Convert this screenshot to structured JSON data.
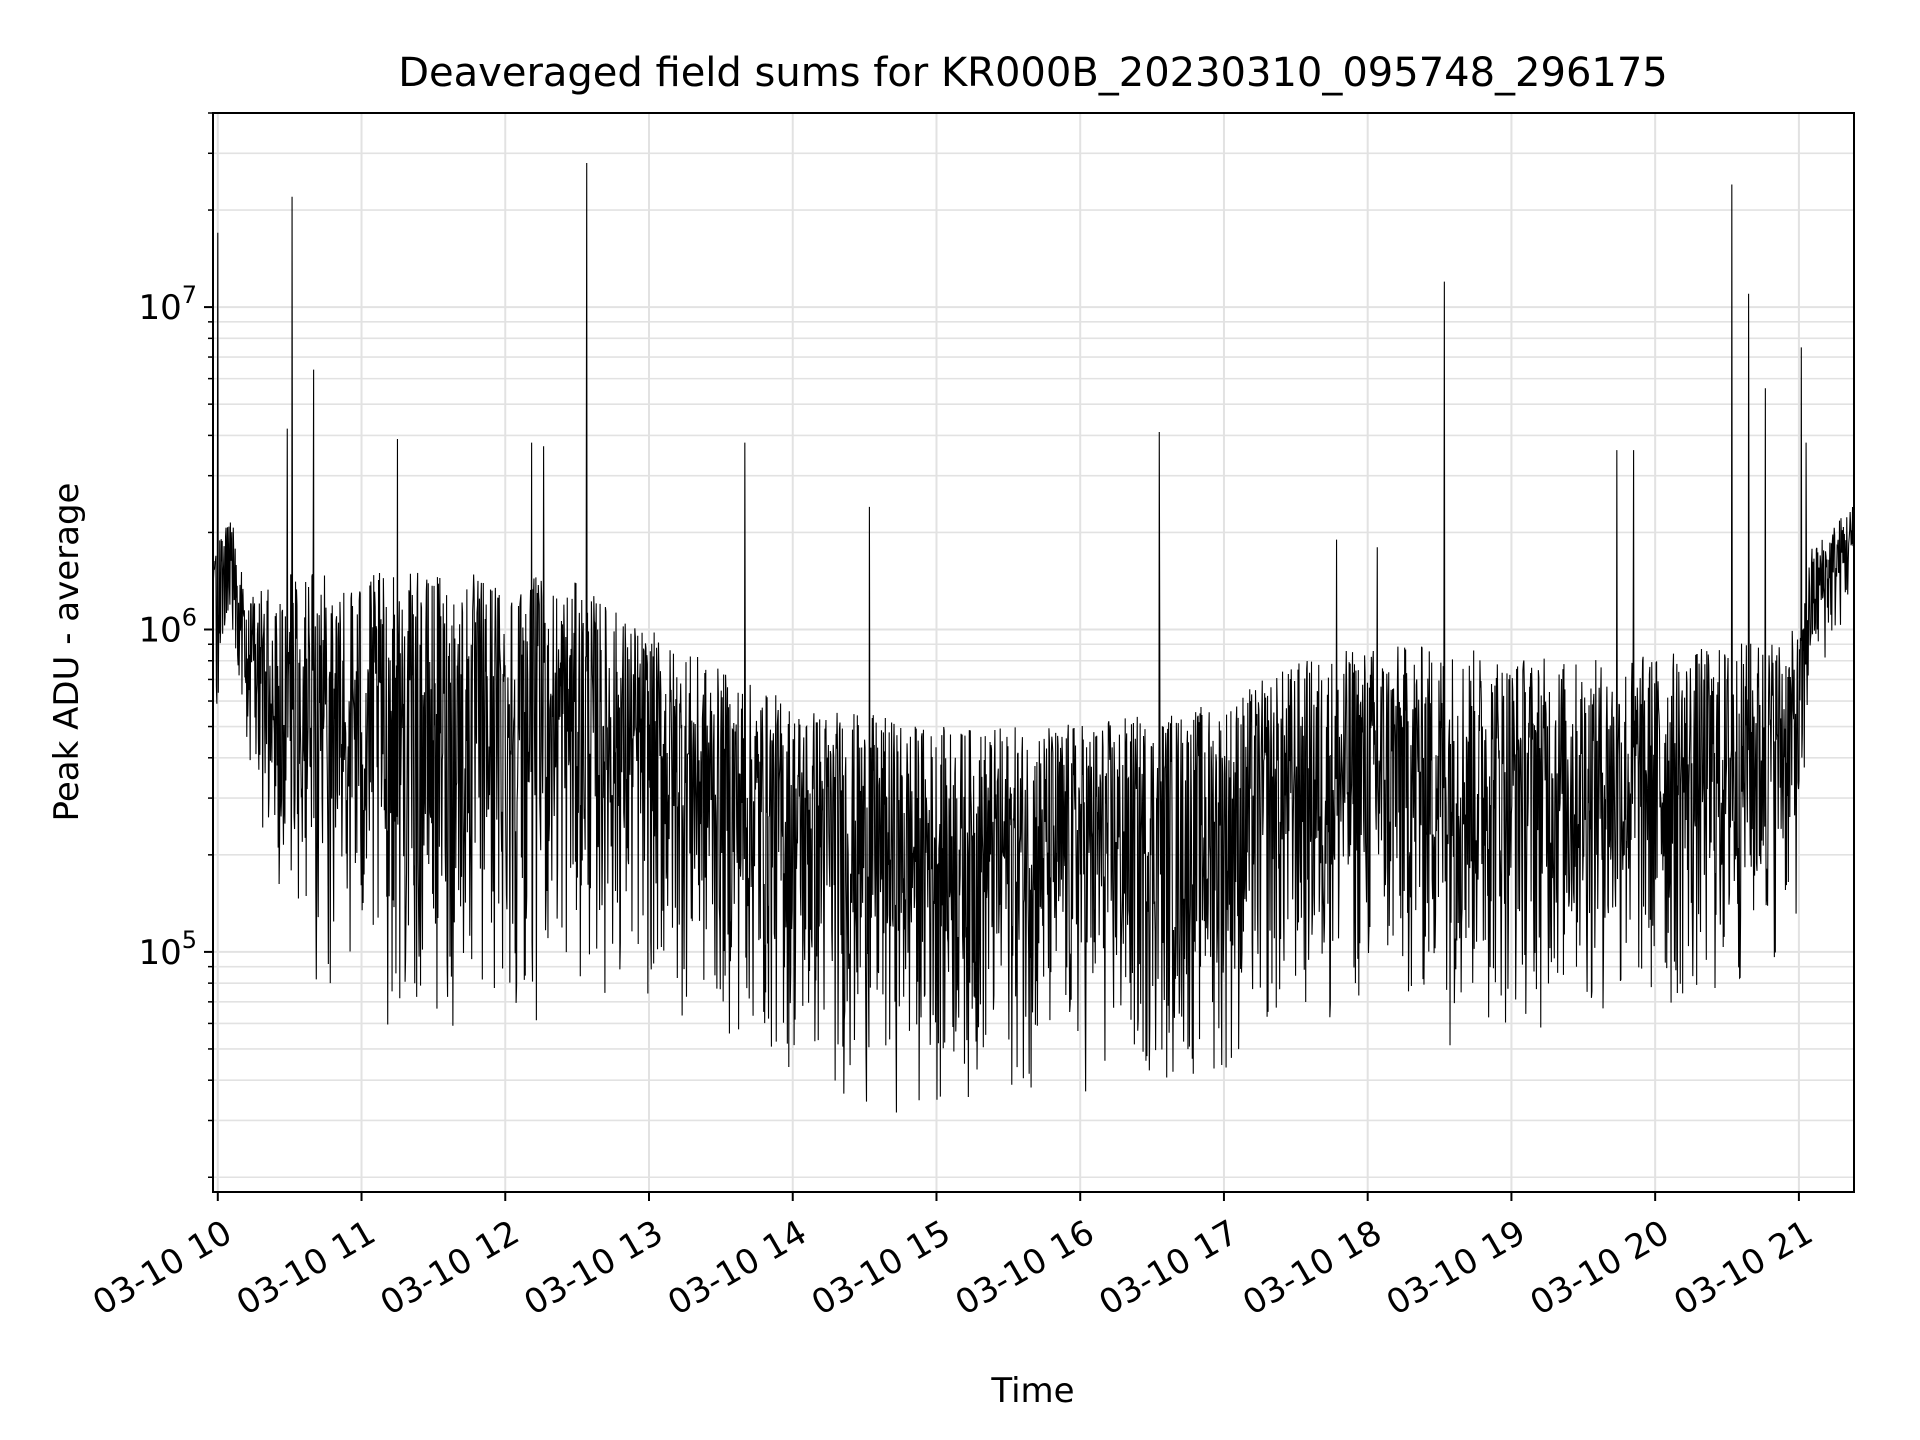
{
  "chart_data": {
    "type": "line",
    "title": "Deaveraged field sums for KR000B_20230310_095748_296175",
    "xlabel": "Time",
    "ylabel": "Peak ADU - average",
    "yscale": "log",
    "grid": true,
    "line_color": "#000000",
    "xlim": [
      "2023-03-10 09:58",
      "2023-03-10 21:23"
    ],
    "ylim": [
      18000,
      40000000
    ],
    "x_ticks": [
      "03-10 10",
      "03-10 11",
      "03-10 12",
      "03-10 13",
      "03-10 14",
      "03-10 15",
      "03-10 16",
      "03-10 17",
      "03-10 18",
      "03-10 19",
      "03-10 20",
      "03-10 21"
    ],
    "y_ticks": [
      {
        "base": "10",
        "exp": "5"
      },
      {
        "base": "10",
        "exp": "6"
      },
      {
        "base": "10",
        "exp": "7"
      }
    ],
    "series": [
      {
        "envelope": [
          {
            "t": "2023-03-10 09:58",
            "low": 380000,
            "high": 1700000
          },
          {
            "t": "2023-03-10 10:06",
            "low": 1000000,
            "high": 2300000
          },
          {
            "t": "2023-03-10 10:12",
            "low": 350000,
            "high": 1200000
          },
          {
            "t": "2023-03-10 10:20",
            "low": 170000,
            "high": 1500000
          },
          {
            "t": "2023-03-10 10:40",
            "low": 60000,
            "high": 1500000
          },
          {
            "t": "2023-03-10 11:30",
            "low": 45000,
            "high": 1500000
          },
          {
            "t": "2023-03-10 12:00",
            "low": 50000,
            "high": 1500000
          },
          {
            "t": "2023-03-10 12:30",
            "low": 70000,
            "high": 1400000
          },
          {
            "t": "2023-03-10 13:00",
            "low": 60000,
            "high": 1000000
          },
          {
            "t": "2023-03-10 13:30",
            "low": 50000,
            "high": 750000
          },
          {
            "t": "2023-03-10 14:00",
            "low": 35000,
            "high": 600000
          },
          {
            "t": "2023-03-10 14:30",
            "low": 30000,
            "high": 550000
          },
          {
            "t": "2023-03-10 15:00",
            "low": 30000,
            "high": 500000
          },
          {
            "t": "2023-03-10 15:30",
            "low": 33000,
            "high": 500000
          },
          {
            "t": "2023-03-10 16:00",
            "low": 32000,
            "high": 520000
          },
          {
            "t": "2023-03-10 16:30",
            "low": 33000,
            "high": 550000
          },
          {
            "t": "2023-03-10 17:00",
            "low": 35000,
            "high": 600000
          },
          {
            "t": "2023-03-10 17:30",
            "low": 50000,
            "high": 800000
          },
          {
            "t": "2023-03-10 18:00",
            "low": 55000,
            "high": 900000
          },
          {
            "t": "2023-03-10 18:30",
            "low": 50000,
            "high": 900000
          },
          {
            "t": "2023-03-10 19:00",
            "low": 50000,
            "high": 850000
          },
          {
            "t": "2023-03-10 19:30",
            "low": 55000,
            "high": 800000
          },
          {
            "t": "2023-03-10 20:00",
            "low": 50000,
            "high": 850000
          },
          {
            "t": "2023-03-10 20:30",
            "low": 55000,
            "high": 900000
          },
          {
            "t": "2023-03-10 21:00",
            "low": 110000,
            "high": 1000000
          },
          {
            "t": "2023-03-10 21:05",
            "low": 600000,
            "high": 1800000
          },
          {
            "t": "2023-03-10 21:23",
            "low": 1100000,
            "high": 2500000
          }
        ],
        "spikes": [
          {
            "t": "2023-03-10 10:00",
            "y": 17000000
          },
          {
            "t": "2023-03-10 10:31",
            "y": 22000000
          },
          {
            "t": "2023-03-10 10:29",
            "y": 4200000
          },
          {
            "t": "2023-03-10 10:40",
            "y": 6400000
          },
          {
            "t": "2023-03-10 11:15",
            "y": 3900000
          },
          {
            "t": "2023-03-10 12:11",
            "y": 3800000
          },
          {
            "t": "2023-03-10 12:16",
            "y": 3700000
          },
          {
            "t": "2023-03-10 12:34",
            "y": 28000000
          },
          {
            "t": "2023-03-10 13:40",
            "y": 3800000
          },
          {
            "t": "2023-03-10 14:32",
            "y": 2400000
          },
          {
            "t": "2023-03-10 16:33",
            "y": 4100000
          },
          {
            "t": "2023-03-10 17:47",
            "y": 1900000
          },
          {
            "t": "2023-03-10 18:04",
            "y": 1800000
          },
          {
            "t": "2023-03-10 18:32",
            "y": 12000000
          },
          {
            "t": "2023-03-10 19:44",
            "y": 3600000
          },
          {
            "t": "2023-03-10 19:51",
            "y": 3600000
          },
          {
            "t": "2023-03-10 20:32",
            "y": 24000000
          },
          {
            "t": "2023-03-10 20:39",
            "y": 11000000
          },
          {
            "t": "2023-03-10 20:46",
            "y": 5600000
          },
          {
            "t": "2023-03-10 21:01",
            "y": 7500000
          },
          {
            "t": "2023-03-10 21:03",
            "y": 3800000
          }
        ]
      }
    ]
  }
}
